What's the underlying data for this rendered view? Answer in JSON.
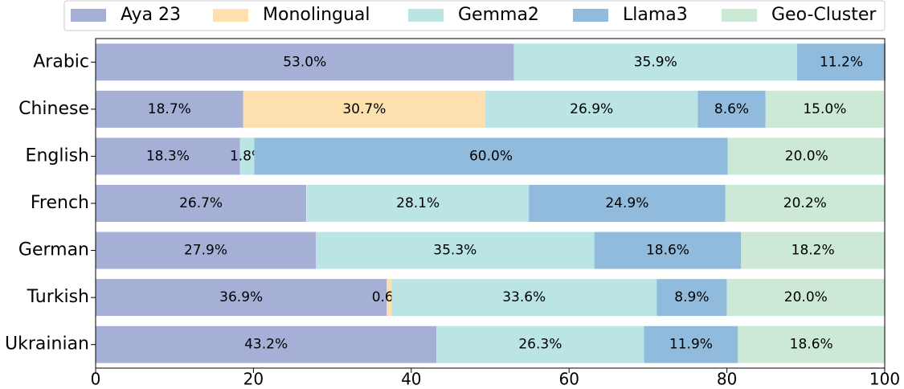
{
  "chart_data": {
    "type": "stacked_barh",
    "categories": [
      "Arabic",
      "Chinese",
      "English",
      "French",
      "German",
      "Turkish",
      "Ukrainian"
    ],
    "series": [
      {
        "name": "Aya 23",
        "color": "#a6b0d6",
        "values": [
          53.0,
          18.7,
          18.3,
          26.7,
          27.9,
          36.9,
          43.2
        ],
        "value_labels": [
          "53.0%",
          "18.7%",
          "18.3%",
          "26.7%",
          "27.9%",
          "36.9%",
          "43.2%"
        ]
      },
      {
        "name": "Monolingual",
        "color": "#fde0ae",
        "values": [
          0,
          30.7,
          0,
          0.1,
          0,
          0.6,
          0
        ],
        "value_labels": [
          null,
          "30.7%",
          null,
          null,
          null,
          "0.6%",
          null
        ]
      },
      {
        "name": "Gemma2",
        "color": "#bbe4e4",
        "values": [
          35.9,
          26.9,
          1.8,
          28.1,
          35.3,
          33.6,
          26.3
        ],
        "value_labels": [
          "35.9%",
          "26.9%",
          "1.8%",
          "28.1%",
          "35.3%",
          "33.6%",
          "26.3%"
        ]
      },
      {
        "name": "Llama3",
        "color": "#91bbdc",
        "values": [
          11.2,
          8.6,
          60.0,
          24.9,
          18.6,
          8.9,
          11.9
        ],
        "value_labels": [
          "11.2%",
          "8.6%",
          "60.0%",
          "24.9%",
          "18.6%",
          "8.9%",
          "11.9%"
        ]
      },
      {
        "name": "Geo-Cluster",
        "color": "#cbe9d5",
        "values": [
          0,
          15.0,
          20.0,
          20.2,
          18.2,
          20.0,
          18.6
        ],
        "value_labels": [
          null,
          "15.0%",
          "20.0%",
          "20.2%",
          "18.2%",
          "20.0%",
          "18.6%"
        ]
      }
    ],
    "xlim": [
      0,
      100
    ],
    "xticks": [
      0,
      20,
      40,
      60,
      80,
      100
    ],
    "legend": "top"
  }
}
